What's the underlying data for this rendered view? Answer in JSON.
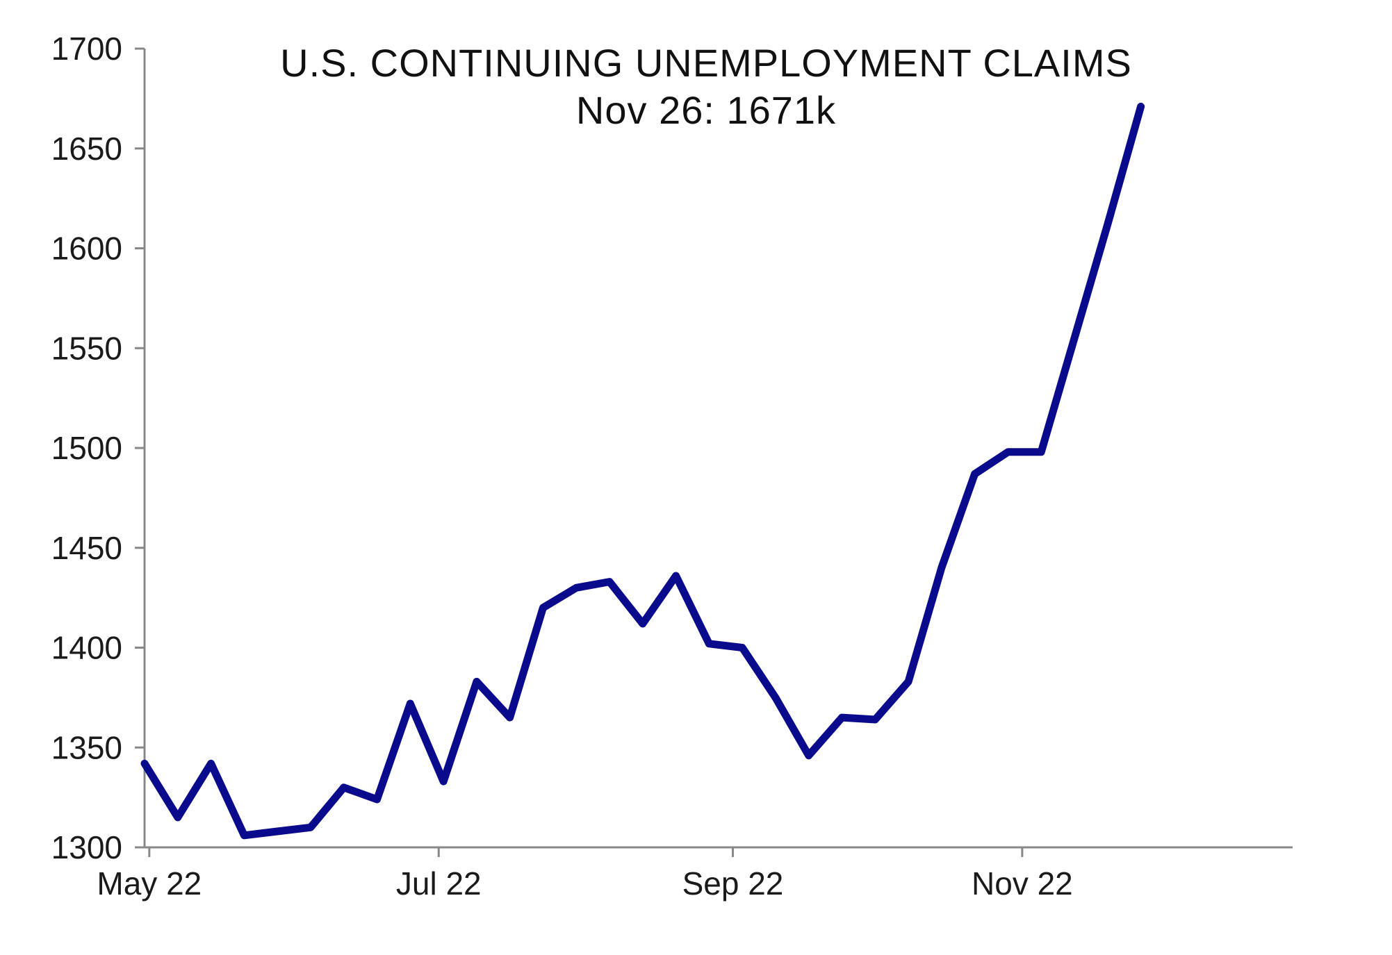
{
  "chart_data": {
    "type": "line",
    "title": "U.S. CONTINUING UNEMPLOYMENT CLAIMS",
    "subtitle": "Nov 26: 1671k",
    "xlabel": "",
    "ylabel": "",
    "ylim": [
      1300,
      1700
    ],
    "yticks": [
      1300,
      1350,
      1400,
      1450,
      1500,
      1550,
      1600,
      1650,
      1700
    ],
    "xlim": [
      "2022-04-30",
      "2022-12-28"
    ],
    "xticks": [
      {
        "label": "May 22",
        "date": "2022-05-01"
      },
      {
        "label": "Jul 22",
        "date": "2022-07-01"
      },
      {
        "label": "Sep 22",
        "date": "2022-09-01"
      },
      {
        "label": "Nov 22",
        "date": "2022-11-01"
      }
    ],
    "grid": false,
    "legend": "none",
    "series": [
      {
        "color": "#0a0a8c",
        "x": [
          "2022-04-30",
          "2022-05-07",
          "2022-05-14",
          "2022-05-21",
          "2022-05-28",
          "2022-06-04",
          "2022-06-11",
          "2022-06-18",
          "2022-06-25",
          "2022-07-02",
          "2022-07-09",
          "2022-07-16",
          "2022-07-23",
          "2022-07-30",
          "2022-08-06",
          "2022-08-13",
          "2022-08-20",
          "2022-08-27",
          "2022-09-03",
          "2022-09-10",
          "2022-09-17",
          "2022-09-24",
          "2022-10-01",
          "2022-10-08",
          "2022-10-15",
          "2022-10-22",
          "2022-10-29",
          "2022-11-05",
          "2022-11-12",
          "2022-11-19",
          "2022-11-26"
        ],
        "values": [
          1342,
          1315,
          1342,
          1306,
          1308,
          1310,
          1330,
          1324,
          1372,
          1333,
          1383,
          1365,
          1420,
          1430,
          1433,
          1412,
          1436,
          1402,
          1400,
          1375,
          1346,
          1365,
          1364,
          1383,
          1440,
          1487,
          1498,
          1498,
          1555,
          1612,
          1671
        ]
      }
    ]
  }
}
